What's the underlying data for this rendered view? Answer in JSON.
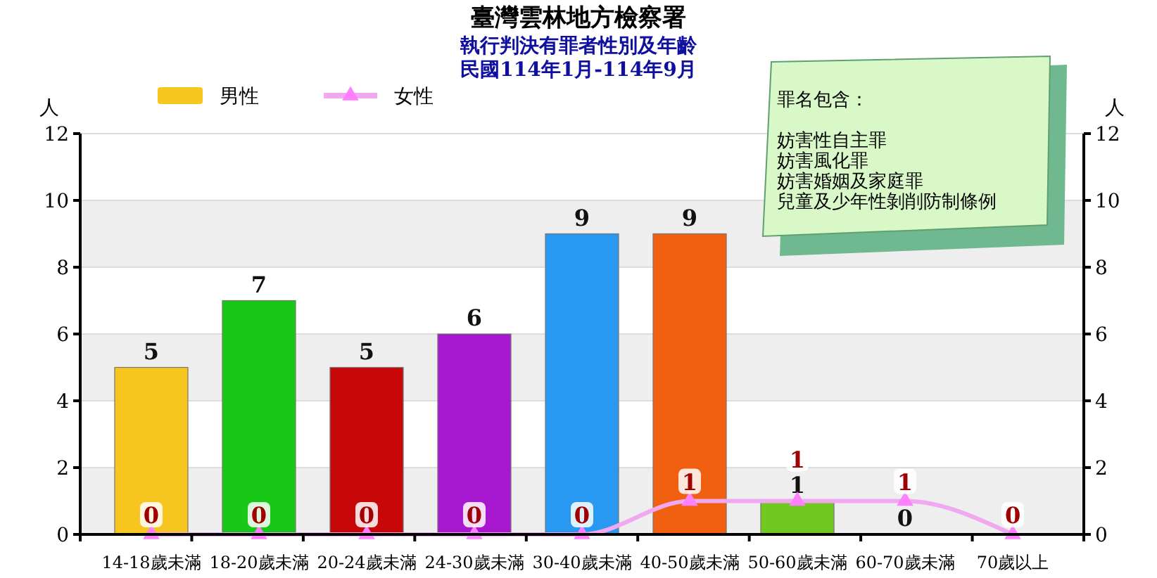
{
  "chart_data": {
    "type": "bar",
    "title": "臺灣雲林地方檢察署",
    "subtitle": "執行判決有罪者性別及年齡",
    "ylabel": "人",
    "y2label": "人",
    "categories": [
      "14-18歲未滿",
      "18-20歲未滿",
      "20-24歲未滿",
      "24-30歲未滿",
      "30-40歲未滿",
      "40-50歲未滿",
      "50-60歲未滿",
      "60-70歲未滿",
      "70歲以上"
    ],
    "series": [
      {
        "name": "男性",
        "color": "#f7c520",
        "colors": [
          "#f7c520",
          "#18c818",
          "#c80808",
          "#a818d0",
          "#2898f0",
          "#f06010",
          "#70c820",
          "#999999",
          "#999999"
        ],
        "values": [
          5,
          7,
          5,
          6,
          9,
          9,
          1,
          0,
          0
        ],
        "value_labels": [
          "5",
          "7",
          "5",
          "6",
          "9",
          "9",
          "1",
          "0",
          null
        ]
      },
      {
        "name": "女性",
        "type": "line",
        "color": "#f0a8f0",
        "marker": "triangle",
        "values": [
          0,
          0,
          0,
          0,
          0,
          1,
          1,
          1,
          0
        ],
        "value_labels": [
          "0",
          "0",
          "0",
          "0",
          "0",
          "1",
          "1",
          "1",
          "0"
        ]
      }
    ],
    "ylim": [
      0,
      12
    ],
    "yticks": [
      0,
      2,
      4,
      6,
      8,
      10,
      12
    ],
    "y2lim": [
      0,
      12
    ],
    "y2ticks": [
      0,
      2,
      4,
      6,
      8,
      10,
      12
    ],
    "grid": "y",
    "legend": "top left",
    "annotations": [
      "民國114年1月-114年9月",
      "罪名包含：",
      "妨害性自主罪",
      "妨害風化罪",
      "妨害婚姻及家庭罪",
      "兒童及少年性剝削防制條例"
    ]
  }
}
